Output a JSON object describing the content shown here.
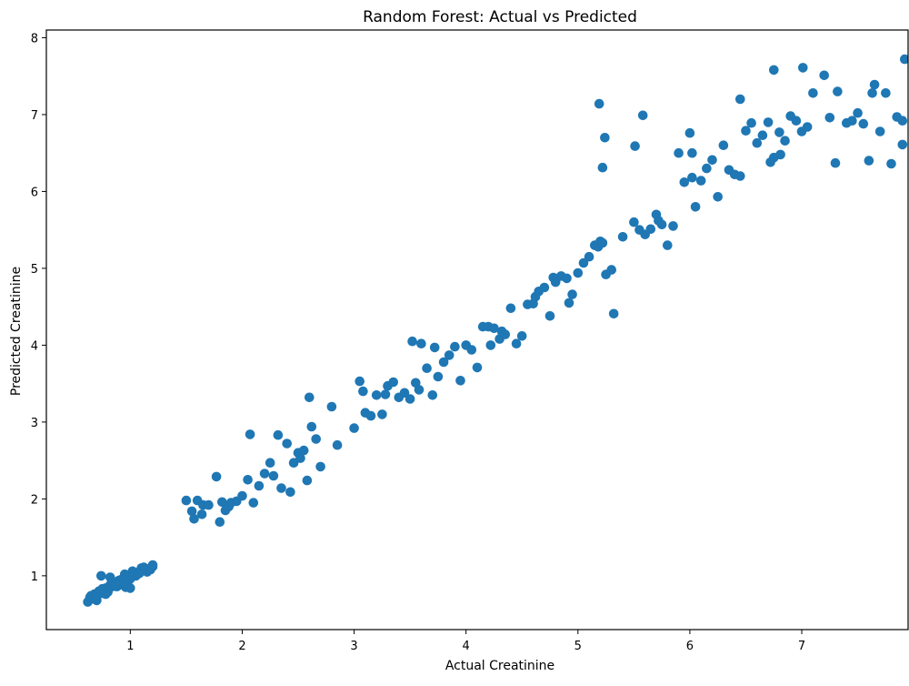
{
  "chart_data": {
    "type": "scatter",
    "title": "Random Forest: Actual vs Predicted",
    "xlabel": "Actual Creatinine",
    "ylabel": "Predicted Creatinine",
    "xlim": [
      0.25,
      7.95
    ],
    "ylim": [
      0.3,
      8.1
    ],
    "xticks": [
      1,
      2,
      3,
      4,
      5,
      6,
      7
    ],
    "yticks": [
      1,
      2,
      3,
      4,
      5,
      6,
      7,
      8
    ],
    "grid": false,
    "marker_color": "#1f77b4",
    "series": [
      {
        "name": "",
        "x": [
          0.62,
          0.64,
          0.66,
          0.68,
          0.7,
          0.72,
          0.74,
          0.76,
          0.78,
          0.8,
          0.82,
          0.84,
          0.86,
          0.88,
          0.9,
          0.92,
          0.94,
          0.96,
          0.98,
          1.0,
          1.02,
          1.04,
          1.06,
          1.08,
          1.1,
          1.12,
          1.14,
          1.16,
          1.18,
          1.2,
          0.65,
          0.7,
          0.75,
          0.8,
          0.85,
          0.9,
          0.95,
          1.0,
          1.05,
          1.1,
          1.15,
          1.2,
          0.68,
          0.78,
          0.88,
          0.98,
          1.08,
          1.18,
          0.72,
          0.82,
          0.92,
          1.02,
          0.74,
          0.96,
          1.12,
          0.7,
          1.0,
          1.5,
          1.55,
          1.57,
          1.6,
          1.64,
          1.65,
          1.7,
          1.77,
          1.8,
          1.82,
          1.85,
          1.88,
          1.9,
          1.95,
          2.0,
          2.05,
          2.07,
          2.1,
          2.15,
          2.2,
          2.25,
          2.28,
          2.32,
          2.35,
          2.4,
          2.43,
          2.46,
          2.5,
          2.52,
          2.55,
          2.58,
          2.6,
          2.62,
          2.66,
          2.7,
          2.8,
          2.85,
          3.0,
          3.05,
          3.08,
          3.1,
          3.15,
          3.2,
          3.25,
          3.28,
          3.3,
          3.35,
          3.4,
          3.45,
          3.5,
          3.52,
          3.55,
          3.58,
          3.6,
          3.65,
          3.7,
          3.72,
          3.75,
          3.8,
          3.85,
          3.9,
          3.95,
          4.0,
          4.05,
          4.1,
          4.15,
          4.2,
          4.22,
          4.25,
          4.3,
          4.32,
          4.35,
          4.4,
          4.45,
          4.5,
          4.55,
          4.6,
          4.62,
          4.65,
          4.7,
          4.75,
          4.78,
          4.8,
          4.85,
          4.9,
          4.92,
          4.95,
          5.0,
          5.05,
          5.1,
          5.15,
          5.18,
          5.2,
          5.22,
          5.25,
          5.3,
          5.32,
          5.4,
          5.5,
          5.55,
          5.6,
          5.65,
          5.7,
          5.72,
          5.75,
          5.8,
          5.85,
          5.9,
          5.95,
          6.0,
          6.02,
          6.05,
          6.1,
          6.15,
          6.2,
          6.25,
          6.3,
          6.35,
          6.4,
          6.45,
          6.5,
          6.55,
          6.6,
          6.65,
          6.7,
          6.75,
          6.8,
          6.85,
          6.9,
          6.95,
          7.0,
          7.05,
          7.1,
          7.2,
          7.25,
          7.3,
          7.4,
          7.45,
          7.5,
          7.55,
          7.6,
          7.65,
          7.7,
          7.75,
          7.8,
          7.85,
          7.9,
          7.92,
          5.19,
          5.22,
          5.24,
          5.51,
          5.58,
          6.02,
          6.75,
          7.01,
          7.63,
          7.9,
          6.45,
          6.72,
          6.81,
          7.32
        ],
        "y": [
          0.66,
          0.72,
          0.7,
          0.76,
          0.73,
          0.78,
          0.8,
          0.77,
          0.84,
          0.82,
          0.88,
          0.86,
          0.9,
          0.92,
          0.94,
          0.95,
          0.96,
          0.98,
          0.99,
          1.0,
          1.01,
          1.02,
          1.04,
          1.05,
          1.06,
          1.07,
          1.08,
          1.09,
          1.1,
          1.12,
          0.74,
          0.68,
          0.83,
          0.79,
          0.92,
          0.88,
          1.02,
          0.96,
          1.0,
          1.1,
          1.05,
          1.14,
          0.7,
          0.76,
          0.86,
          0.93,
          1.03,
          1.08,
          0.8,
          0.98,
          0.91,
          1.06,
          1.0,
          0.85,
          1.11,
          0.72,
          0.84,
          1.98,
          1.84,
          1.74,
          1.98,
          1.8,
          1.92,
          1.92,
          2.29,
          1.7,
          1.96,
          1.85,
          1.9,
          1.95,
          1.97,
          2.04,
          2.25,
          2.84,
          1.95,
          2.17,
          2.33,
          2.47,
          2.3,
          2.83,
          2.14,
          2.72,
          2.09,
          2.47,
          2.6,
          2.53,
          2.63,
          2.24,
          3.32,
          2.94,
          2.78,
          2.42,
          3.2,
          2.7,
          2.92,
          3.53,
          3.4,
          3.12,
          3.08,
          3.35,
          3.1,
          3.36,
          3.47,
          3.52,
          3.32,
          3.38,
          3.3,
          4.05,
          3.51,
          3.42,
          4.02,
          3.7,
          3.35,
          3.97,
          3.59,
          3.78,
          3.87,
          3.98,
          3.54,
          4.0,
          3.94,
          3.71,
          4.24,
          4.24,
          4.0,
          4.22,
          4.08,
          4.18,
          4.14,
          4.48,
          4.02,
          4.12,
          4.53,
          4.54,
          4.63,
          4.7,
          4.75,
          4.38,
          4.88,
          4.82,
          4.9,
          4.87,
          4.55,
          4.66,
          4.94,
          5.07,
          5.15,
          5.3,
          5.28,
          5.35,
          5.33,
          4.92,
          4.98,
          4.41,
          5.41,
          5.6,
          5.5,
          5.44,
          5.51,
          5.7,
          5.62,
          5.57,
          5.3,
          5.55,
          6.5,
          6.12,
          6.76,
          6.5,
          5.8,
          6.14,
          6.3,
          6.41,
          5.93,
          6.6,
          6.28,
          6.22,
          6.2,
          6.79,
          6.89,
          6.63,
          6.73,
          6.9,
          7.58,
          6.77,
          6.66,
          6.98,
          6.92,
          6.78,
          6.84,
          7.28,
          7.51,
          6.96,
          6.37,
          6.89,
          6.92,
          7.02,
          6.88,
          6.4,
          7.39,
          6.78,
          7.28,
          6.36,
          6.97,
          6.92,
          7.72,
          7.14,
          6.31,
          6.7,
          6.59,
          6.99,
          6.18,
          6.44,
          7.61,
          7.28,
          6.61,
          7.2,
          6.38,
          6.48,
          7.3
        ]
      }
    ]
  }
}
